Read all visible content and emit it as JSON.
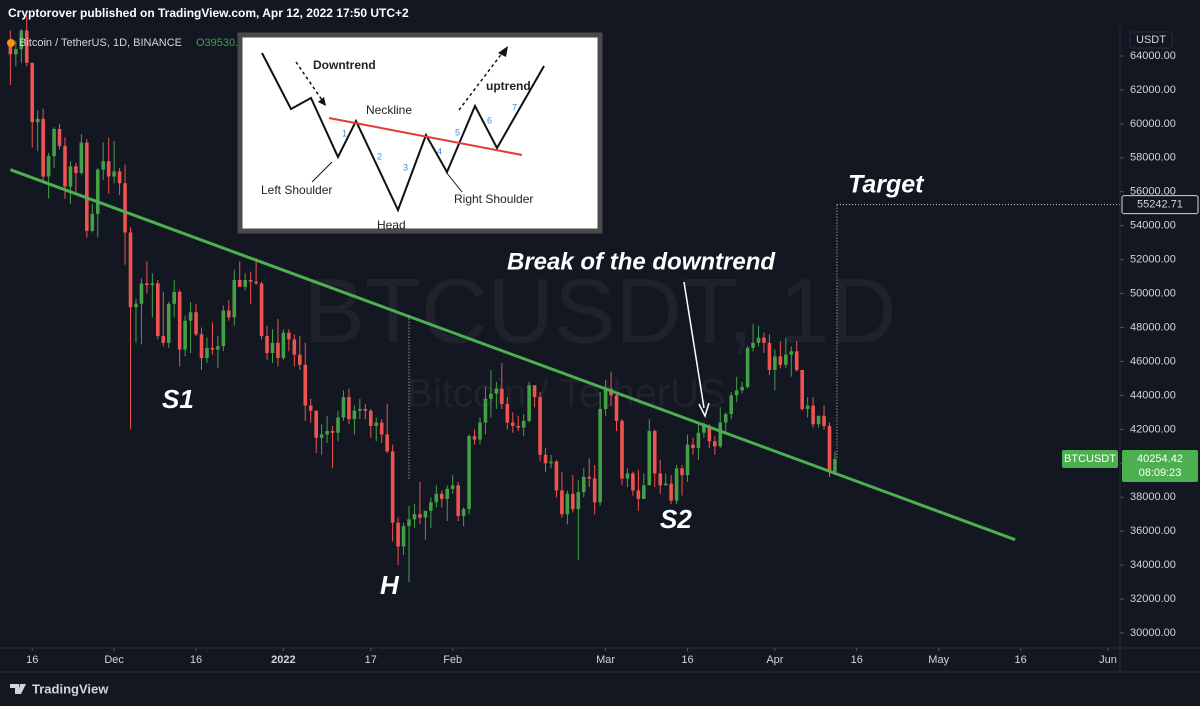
{
  "header": {
    "publisher": "Cryptorover published on TradingView.com, Apr 12, 2022 17:50 UTC+2",
    "symbol": "Bitcoin / TetherUS, 1D, BINANCE",
    "open_partial": "O39530."
  },
  "footer": {
    "brand": "TradingView"
  },
  "inset": {
    "downtrend": "Downtrend",
    "neckline": "Neckline",
    "uptrend": "uptrend",
    "left_shoulder": "Left Shoulder",
    "head": "Head",
    "right_shoulder": "Right Shoulder",
    "steps": [
      "1",
      "2",
      "3",
      "4",
      "5",
      "6",
      "7"
    ]
  },
  "chart_data": {
    "type": "candlestick",
    "watermark": [
      "BTCUSDT, 1D",
      "Bitcoin / TetherUS"
    ],
    "y_unit": "USDT",
    "up_color": "#43a047",
    "down_color": "#ef5350",
    "xlim": [
      -5.9,
      199.2
    ],
    "xticks": [
      {
        "value": 0,
        "label": "16"
      },
      {
        "value": 15,
        "label": "Dec"
      },
      {
        "value": 30,
        "label": "16"
      },
      {
        "value": 46,
        "label": "2022"
      },
      {
        "value": 62,
        "label": "17"
      },
      {
        "value": 77,
        "label": "Feb"
      },
      {
        "value": 105,
        "label": "Mar"
      },
      {
        "value": 120,
        "label": "16"
      },
      {
        "value": 136,
        "label": "Apr"
      },
      {
        "value": 151,
        "label": "16"
      },
      {
        "value": 166,
        "label": "May"
      },
      {
        "value": 181,
        "label": "16"
      },
      {
        "value": 197,
        "label": "Jun"
      }
    ],
    "ylim": [
      29116,
      65650
    ],
    "yticks": [
      {
        "value": 30000,
        "label": "30000.00"
      },
      {
        "value": 32000,
        "label": "32000.00"
      },
      {
        "value": 34000,
        "label": "34000.00"
      },
      {
        "value": 36000,
        "label": "36000.00"
      },
      {
        "value": 38000,
        "label": "38000.00"
      },
      {
        "value": 40000,
        "label": "40000.00"
      },
      {
        "value": 42000,
        "label": "42000.00"
      },
      {
        "value": 44000,
        "label": "44000.00"
      },
      {
        "value": 46000,
        "label": "46000.00"
      },
      {
        "value": 48000,
        "label": "48000.00"
      },
      {
        "value": 50000,
        "label": "50000.00"
      },
      {
        "value": 52000,
        "label": "52000.00"
      },
      {
        "value": 54000,
        "label": "54000.00"
      },
      {
        "value": 56000,
        "label": "56000.00"
      },
      {
        "value": 58000,
        "label": "58000.00"
      },
      {
        "value": 60000,
        "label": "60000.00"
      },
      {
        "value": 62000,
        "label": "62000.00"
      },
      {
        "value": 64000,
        "label": "64000.00"
      }
    ],
    "x": [
      -4,
      -3,
      -2,
      -1,
      0,
      1,
      2,
      3,
      4,
      5,
      6,
      7,
      8,
      9,
      10,
      11,
      12,
      13,
      14,
      15,
      16,
      17,
      18,
      19,
      20,
      21,
      22,
      23,
      24,
      25,
      26,
      27,
      28,
      29,
      30,
      31,
      32,
      33,
      34,
      35,
      36,
      37,
      38,
      39,
      40,
      41,
      42,
      43,
      44,
      45,
      46,
      47,
      48,
      49,
      50,
      51,
      52,
      53,
      54,
      55,
      56,
      57,
      58,
      59,
      60,
      61,
      62,
      63,
      64,
      65,
      66,
      67,
      68,
      69,
      70,
      71,
      72,
      73,
      74,
      75,
      76,
      77,
      78,
      79,
      80,
      81,
      82,
      83,
      84,
      85,
      86,
      87,
      88,
      89,
      90,
      91,
      92,
      93,
      94,
      95,
      96,
      97,
      98,
      99,
      100,
      101,
      102,
      103,
      104,
      105,
      106,
      107,
      108,
      109,
      110,
      111,
      112,
      113,
      114,
      115,
      116,
      117,
      118,
      119,
      120,
      121,
      122,
      123,
      124,
      125,
      126,
      127,
      128,
      129,
      130,
      131,
      132,
      133,
      134,
      135,
      136,
      137,
      138,
      139,
      140,
      141,
      142,
      143,
      144,
      145,
      146,
      147
    ],
    "ohlc": [
      [
        64900,
        65500,
        62300,
        64100
      ],
      [
        64100,
        64900,
        63400,
        64400
      ],
      [
        64400,
        65600,
        63600,
        65500
      ],
      [
        65500,
        66400,
        63400,
        63600
      ],
      [
        63600,
        63600,
        58600,
        60100
      ],
      [
        60100,
        60800,
        58400,
        60300
      ],
      [
        60300,
        60900,
        56500,
        56900
      ],
      [
        56900,
        58300,
        55600,
        58100
      ],
      [
        58100,
        59800,
        57400,
        59700
      ],
      [
        59700,
        60000,
        58500,
        58700
      ],
      [
        58700,
        59200,
        55600,
        56300
      ],
      [
        56300,
        57800,
        55300,
        57500
      ],
      [
        57500,
        57700,
        55900,
        57100
      ],
      [
        57100,
        59400,
        57000,
        58900
      ],
      [
        58900,
        59100,
        53300,
        53700
      ],
      [
        53700,
        55300,
        53600,
        54700
      ],
      [
        54700,
        57400,
        53300,
        57300
      ],
      [
        57300,
        58900,
        56700,
        57800
      ],
      [
        57800,
        59200,
        55900,
        56900
      ],
      [
        56900,
        59000,
        56500,
        57200
      ],
      [
        57200,
        57400,
        55800,
        56500
      ],
      [
        56500,
        57600,
        51700,
        53600
      ],
      [
        53600,
        53900,
        42000,
        49200
      ],
      [
        49200,
        49700,
        47100,
        49400
      ],
      [
        49400,
        50900,
        47000,
        50600
      ],
      [
        50600,
        51900,
        50000,
        50500
      ],
      [
        50500,
        51200,
        48600,
        50600
      ],
      [
        50600,
        50800,
        47300,
        47500
      ],
      [
        47500,
        50100,
        46900,
        47100
      ],
      [
        47100,
        49500,
        46800,
        49400
      ],
      [
        49400,
        50800,
        48600,
        50100
      ],
      [
        50100,
        50200,
        45700,
        46700
      ],
      [
        46700,
        48700,
        46300,
        48400
      ],
      [
        48400,
        49500,
        46500,
        48900
      ],
      [
        48900,
        49400,
        47500,
        47600
      ],
      [
        47600,
        48000,
        45500,
        46200
      ],
      [
        46200,
        47400,
        45900,
        46800
      ],
      [
        46800,
        48300,
        46400,
        46700
      ],
      [
        46700,
        47500,
        45600,
        46900
      ],
      [
        46900,
        49300,
        46600,
        49000
      ],
      [
        49000,
        49600,
        48400,
        48600
      ],
      [
        48600,
        51400,
        48100,
        50800
      ],
      [
        50800,
        51900,
        50400,
        50400
      ],
      [
        50400,
        51200,
        50200,
        50800
      ],
      [
        50800,
        51300,
        49400,
        50700
      ],
      [
        50700,
        52100,
        50500,
        50600
      ],
      [
        50600,
        50700,
        47300,
        47500
      ],
      [
        47500,
        48100,
        46100,
        46500
      ],
      [
        46500,
        47900,
        45900,
        47100
      ],
      [
        47100,
        48500,
        45700,
        46200
      ],
      [
        46200,
        47900,
        46100,
        47700
      ],
      [
        47700,
        47900,
        46600,
        47300
      ],
      [
        47300,
        47600,
        45700,
        46400
      ],
      [
        46400,
        47500,
        45500,
        45800
      ],
      [
        45800,
        47100,
        42500,
        43400
      ],
      [
        43400,
        43800,
        42400,
        43100
      ],
      [
        43100,
        43100,
        40600,
        41500
      ],
      [
        41500,
        42300,
        40500,
        41700
      ],
      [
        41700,
        42800,
        41200,
        41900
      ],
      [
        41900,
        42200,
        39700,
        41800
      ],
      [
        41800,
        43100,
        41300,
        42700
      ],
      [
        42700,
        44300,
        42500,
        43900
      ],
      [
        43900,
        44400,
        42300,
        42600
      ],
      [
        42600,
        43400,
        41700,
        43100
      ],
      [
        43100,
        43800,
        42600,
        43200
      ],
      [
        43200,
        43500,
        42600,
        43100
      ],
      [
        43100,
        43200,
        41500,
        42200
      ],
      [
        42200,
        42700,
        41300,
        42400
      ],
      [
        42400,
        42600,
        41200,
        41700
      ],
      [
        41700,
        43500,
        40600,
        40700
      ],
      [
        40700,
        41100,
        35400,
        36500
      ],
      [
        36500,
        36800,
        34000,
        35100
      ],
      [
        35100,
        36500,
        34600,
        36300
      ],
      [
        36300,
        37500,
        33000,
        36700
      ],
      [
        36700,
        37600,
        36200,
        37000
      ],
      [
        37000,
        38900,
        36400,
        36800
      ],
      [
        36800,
        37200,
        35500,
        37200
      ],
      [
        37200,
        38000,
        36200,
        37700
      ],
      [
        37700,
        38700,
        37400,
        38200
      ],
      [
        38200,
        38400,
        37400,
        37900
      ],
      [
        37900,
        38700,
        36600,
        38500
      ],
      [
        38500,
        39300,
        38200,
        38700
      ],
      [
        38700,
        38900,
        36600,
        36900
      ],
      [
        36900,
        37400,
        36300,
        37300
      ],
      [
        37300,
        41700,
        37000,
        41600
      ],
      [
        41600,
        42000,
        41100,
        41400
      ],
      [
        41400,
        42700,
        41100,
        42400
      ],
      [
        42400,
        44500,
        41700,
        43800
      ],
      [
        43800,
        45500,
        42700,
        44100
      ],
      [
        44100,
        44800,
        43200,
        44400
      ],
      [
        44400,
        45900,
        43200,
        43500
      ],
      [
        43500,
        43900,
        42000,
        42400
      ],
      [
        42400,
        43000,
        41800,
        42200
      ],
      [
        42200,
        42800,
        41900,
        42100
      ],
      [
        42100,
        42900,
        41600,
        42500
      ],
      [
        42500,
        44800,
        42400,
        44600
      ],
      [
        44600,
        44600,
        43300,
        43900
      ],
      [
        43900,
        44200,
        40100,
        40500
      ],
      [
        40500,
        40900,
        39500,
        40000
      ],
      [
        40000,
        40500,
        39700,
        40100
      ],
      [
        40100,
        40200,
        38000,
        38400
      ],
      [
        38400,
        39500,
        36800,
        37000
      ],
      [
        37000,
        38400,
        36400,
        38200
      ],
      [
        38200,
        39300,
        37100,
        37300
      ],
      [
        37300,
        39000,
        34300,
        38300
      ],
      [
        38300,
        39700,
        38000,
        39200
      ],
      [
        39200,
        40300,
        38600,
        39100
      ],
      [
        39100,
        39900,
        37000,
        37700
      ],
      [
        37700,
        44200,
        37500,
        43200
      ],
      [
        43200,
        44900,
        42800,
        44400
      ],
      [
        44400,
        45400,
        43400,
        44000
      ],
      [
        44000,
        44100,
        41900,
        42500
      ],
      [
        42500,
        42600,
        38700,
        39100
      ],
      [
        39100,
        39700,
        38600,
        39400
      ],
      [
        39400,
        39500,
        38100,
        38400
      ],
      [
        38400,
        39600,
        37200,
        37900
      ],
      [
        37900,
        39400,
        37900,
        38700
      ],
      [
        38700,
        42600,
        38700,
        41900
      ],
      [
        41900,
        42000,
        38600,
        39400
      ],
      [
        39400,
        40200,
        38200,
        38700
      ],
      [
        38700,
        39400,
        38700,
        38800
      ],
      [
        38800,
        39300,
        37600,
        37800
      ],
      [
        37800,
        39900,
        37600,
        39700
      ],
      [
        39700,
        39900,
        38100,
        39300
      ],
      [
        39300,
        41700,
        38900,
        41100
      ],
      [
        41100,
        41500,
        40500,
        40900
      ],
      [
        40900,
        42300,
        40200,
        41800
      ],
      [
        41800,
        42400,
        41500,
        42200
      ],
      [
        42200,
        42300,
        40900,
        41300
      ],
      [
        41300,
        41600,
        40500,
        41000
      ],
      [
        41000,
        43300,
        40900,
        42400
      ],
      [
        42400,
        43000,
        41800,
        42900
      ],
      [
        42900,
        44200,
        42600,
        44000
      ],
      [
        44000,
        45100,
        43600,
        44300
      ],
      [
        44300,
        44800,
        44100,
        44500
      ],
      [
        44500,
        46900,
        44400,
        46800
      ],
      [
        46800,
        48200,
        46600,
        47100
      ],
      [
        47100,
        48100,
        46900,
        47400
      ],
      [
        47400,
        47700,
        46500,
        47100
      ],
      [
        47100,
        47600,
        45200,
        45500
      ],
      [
        45500,
        46700,
        44300,
        46300
      ],
      [
        46300,
        47200,
        45600,
        45800
      ],
      [
        45800,
        47400,
        45600,
        46400
      ],
      [
        46400,
        46900,
        45100,
        46600
      ],
      [
        46600,
        47200,
        45400,
        45500
      ],
      [
        45500,
        45500,
        43100,
        43200
      ],
      [
        43200,
        43900,
        42700,
        43400
      ],
      [
        43400,
        43900,
        42100,
        42300
      ],
      [
        42300,
        42800,
        42100,
        42800
      ],
      [
        42800,
        43400,
        42000,
        42200
      ],
      [
        42200,
        42400,
        39200,
        39500
      ],
      [
        39500,
        40700,
        39300,
        40250
      ]
    ],
    "trendline": {
      "x": [
        -4,
        180
      ],
      "y": [
        57300,
        35500
      ],
      "color": "#4caf50"
    },
    "head_guide": {
      "x": 69,
      "y": [
        48700,
        39000
      ]
    },
    "target": 55242.71,
    "last_price": {
      "label": "BTCUSDT",
      "value": 40254.42,
      "countdown": "08:09:23",
      "color": "#4caf50"
    },
    "annotations": {
      "target": "Target",
      "break": "Break of the downtrend",
      "s1": "S1",
      "head": "H",
      "s2": "S2"
    }
  }
}
